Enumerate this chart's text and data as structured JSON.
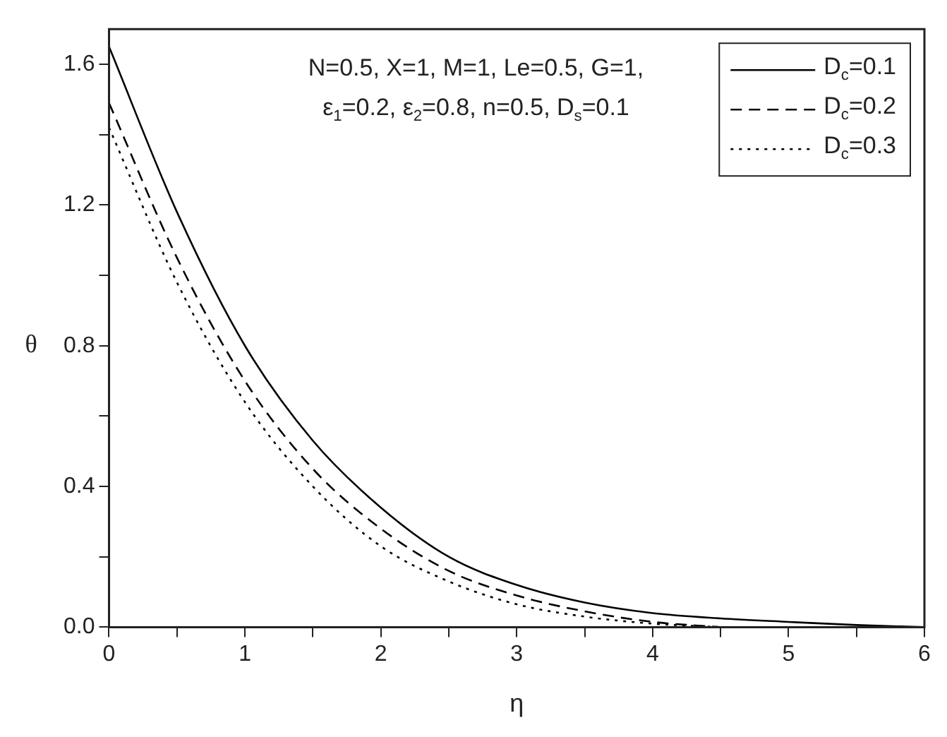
{
  "chart_data": {
    "type": "line",
    "xlabel": "η",
    "ylabel": "θ",
    "x": [
      0,
      0.5,
      1,
      1.5,
      2,
      2.5,
      3,
      3.5,
      4,
      4.5,
      5,
      5.5,
      6
    ],
    "series": [
      {
        "name": "D$_{c}$=0.1",
        "color": "#000000",
        "line_style": "solid",
        "values": [
          1.65,
          1.18,
          0.8,
          0.53,
          0.34,
          0.2,
          0.12,
          0.07,
          0.04,
          0.025,
          0.015,
          0.006,
          0
        ]
      },
      {
        "name": "D$_{c}$=0.2",
        "color": "#000000",
        "line_style": "dashed",
        "values": [
          1.49,
          1.05,
          0.7,
          0.45,
          0.28,
          0.16,
          0.09,
          0.045,
          0.015,
          0,
          null,
          null,
          null
        ]
      },
      {
        "name": "D$_{c}$=0.3",
        "color": "#000000",
        "line_style": "dotted",
        "values": [
          1.42,
          0.98,
          0.64,
          0.4,
          0.23,
          0.13,
          0.065,
          0.03,
          0.01,
          0,
          null,
          null,
          null
        ]
      }
    ],
    "xlim": [
      0,
      6
    ],
    "xticks": [
      0,
      {
        "value": 0.5,
        "label": null
      },
      1,
      {
        "value": 1.5,
        "label": null
      },
      2,
      {
        "value": 2.5,
        "label": null
      },
      3,
      {
        "value": 3.5,
        "label": null
      },
      4,
      {
        "value": 4.5,
        "label": null
      },
      5,
      {
        "value": 5.5,
        "label": null
      },
      6
    ],
    "ylim": [
      0,
      1.7
    ],
    "yticks": [
      {
        "value": 0,
        "label": "0.0"
      },
      {
        "value": 0.2,
        "label": null
      },
      0.4,
      {
        "value": 0.6,
        "label": null
      },
      0.8,
      {
        "value": 1.0,
        "label": null
      },
      1.2,
      {
        "value": 1.4,
        "label": null
      },
      1.6
    ],
    "grid": false,
    "legend": "top right",
    "marker": "none",
    "annotations": [
      "N=0.5, X=1, M=1, Le=0.5, G=1,",
      "ε$_{1}$=0.2, ε$_{2}$=0.8, n=0.5, D$_{s}$=0.1"
    ]
  }
}
